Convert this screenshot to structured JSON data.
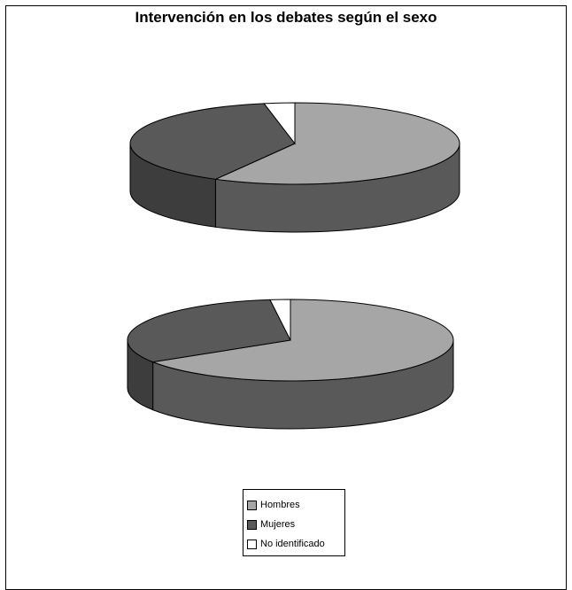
{
  "chart_data": {
    "type": "pie",
    "title": "Intervención en los debates según el sexo",
    "categories": [
      "Hombres",
      "Mujeres",
      "No identificado"
    ],
    "colors": [
      "#a6a6a6",
      "#595959",
      "#ffffff"
    ],
    "pies": [
      {
        "values": [
          58,
          39,
          3
        ]
      },
      {
        "values": [
          66,
          32,
          2
        ]
      }
    ],
    "legend_position": "bottom-center"
  }
}
